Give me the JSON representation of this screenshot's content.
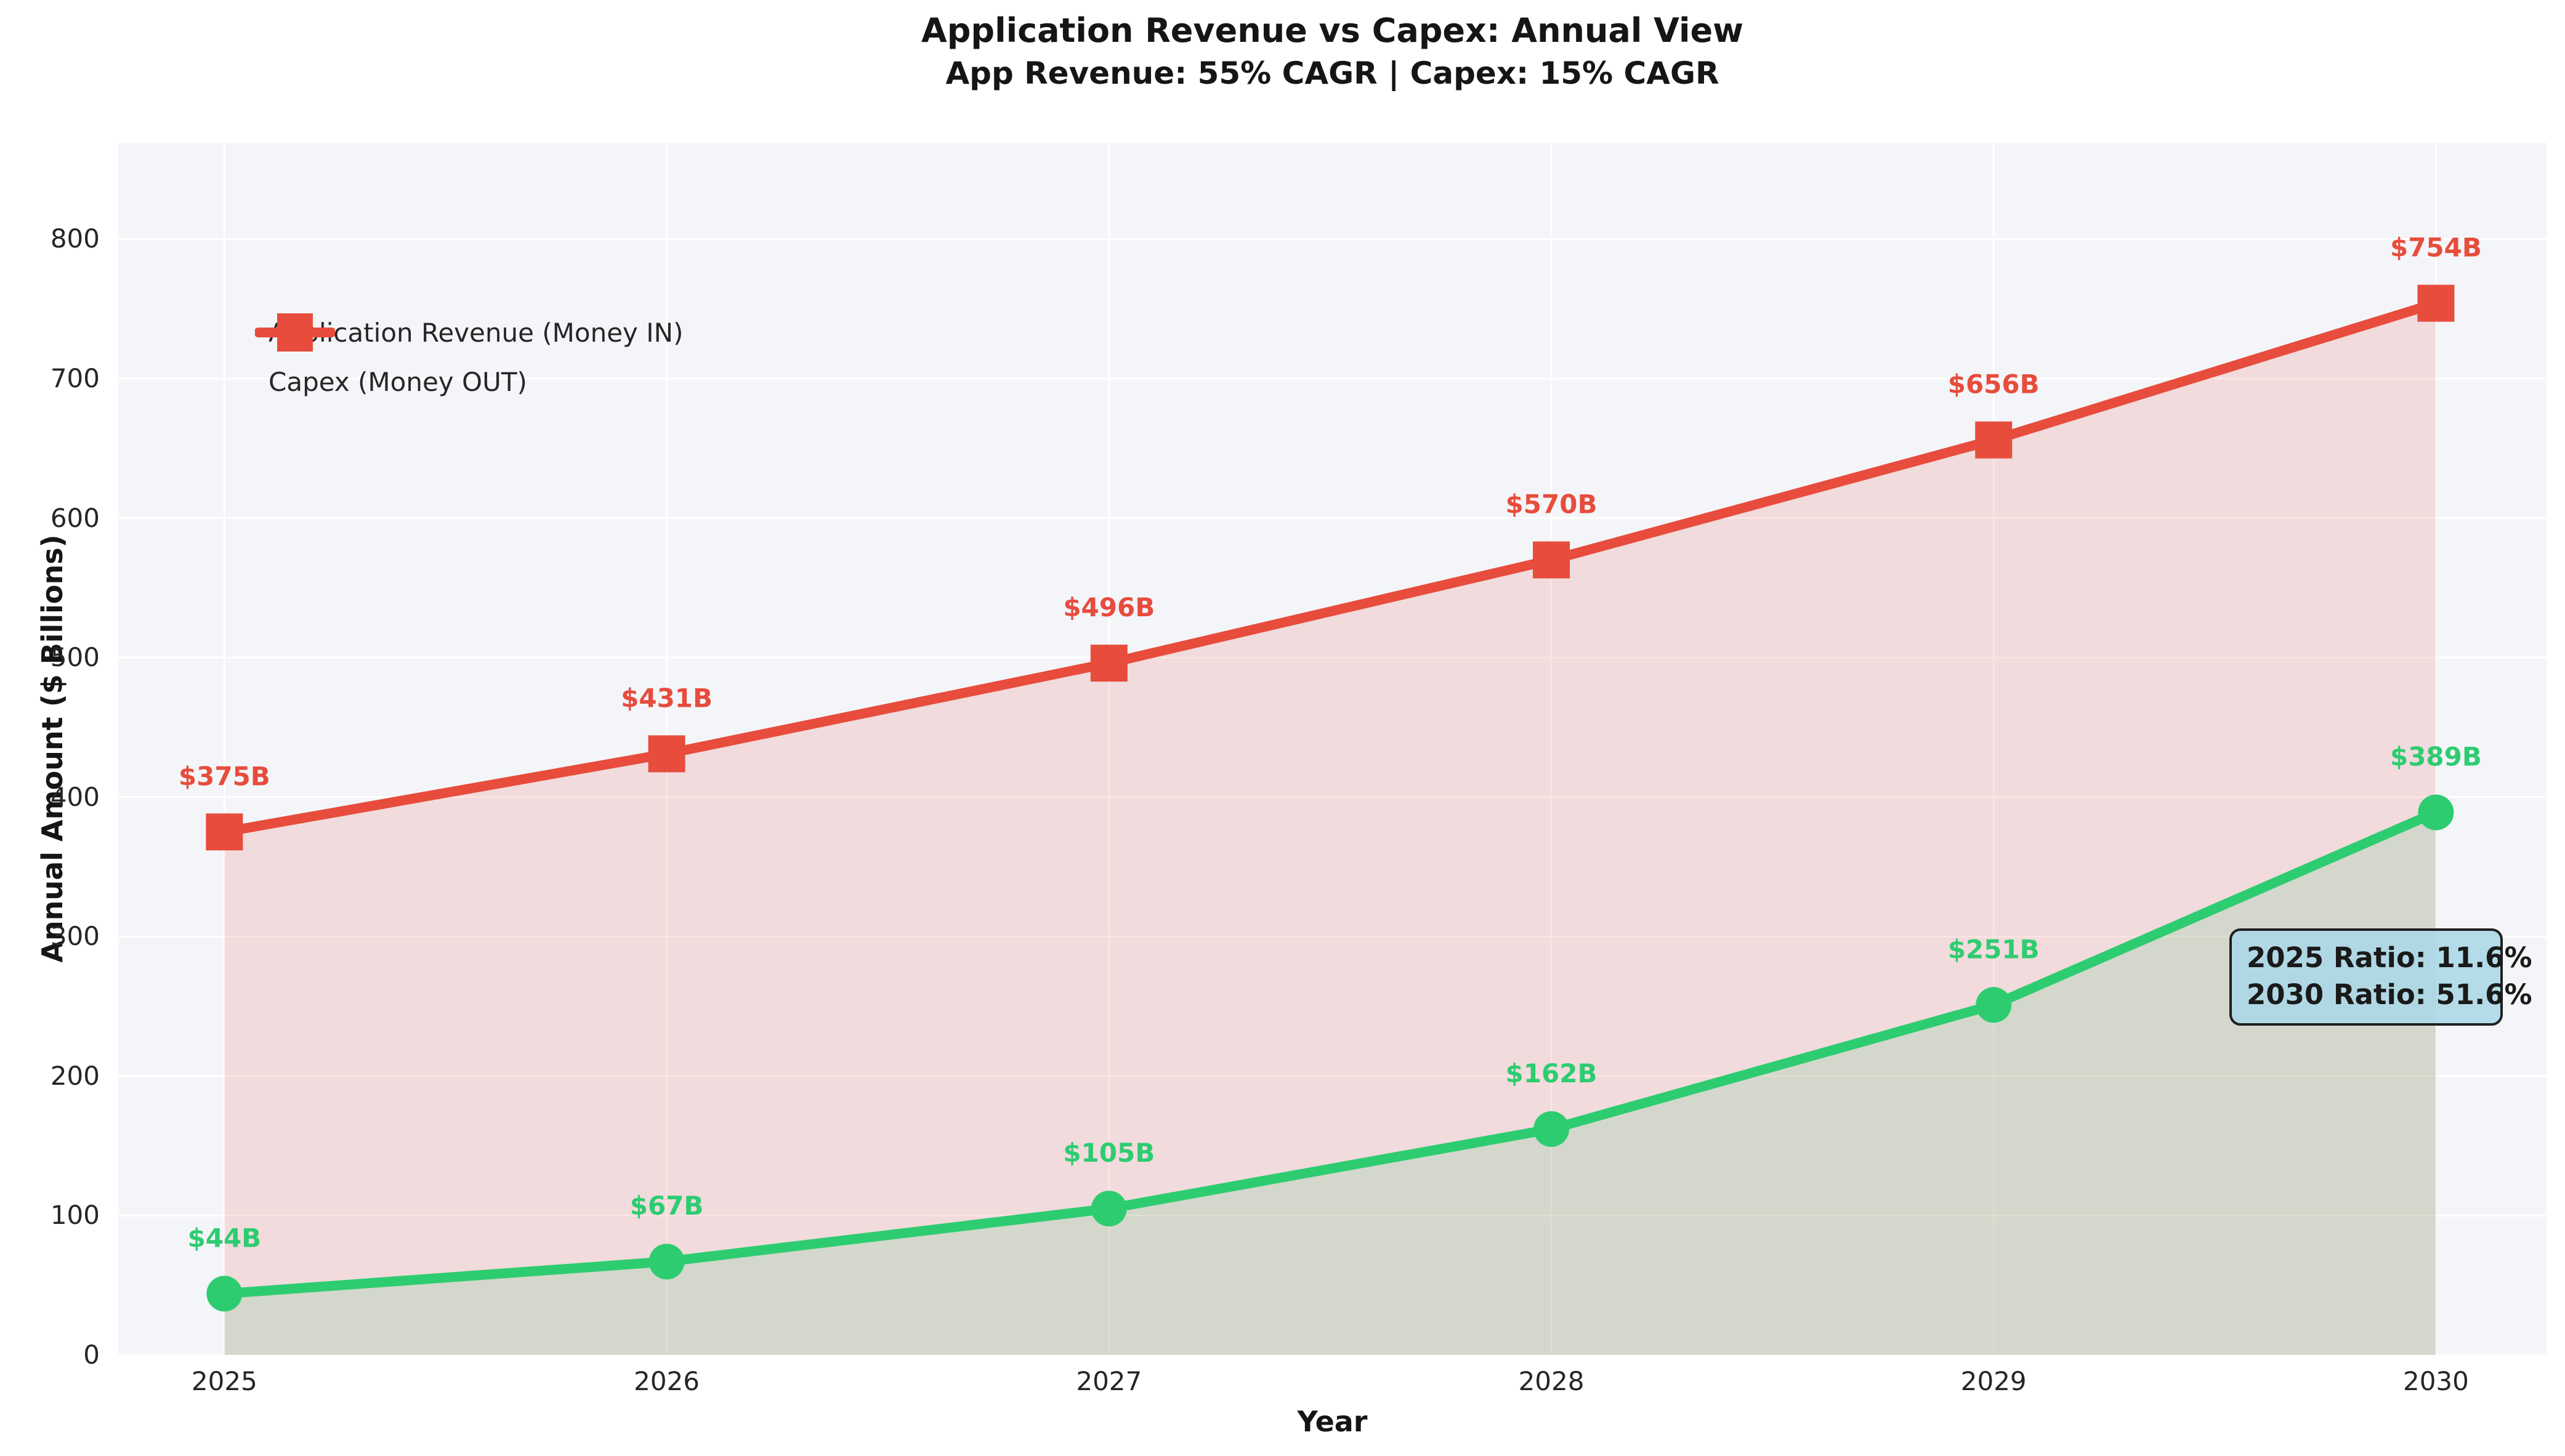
{
  "header": {
    "title": "Application Revenue vs Capex: Annual View",
    "subtitle": "App Revenue: 55% CAGR | Capex: 15% CAGR"
  },
  "axes": {
    "x_label": "Year",
    "y_label": "Annual Amount ($ Billions)"
  },
  "annotation": {
    "line1": "2025 Ratio: 11.6%",
    "line2": "2030 Ratio: 51.6%",
    "bg_color": "#add8e6",
    "border_color": "#1f1f1f"
  },
  "colors": {
    "revenue_green": "#2ecc71",
    "capex_red": "#e74c3c",
    "plot_background": "#f4f5f8",
    "grid": "#ffffff",
    "text": "#262626"
  },
  "chart_data": {
    "type": "line",
    "x": [
      2025,
      2026,
      2027,
      2028,
      2029,
      2030
    ],
    "series": [
      {
        "name": "Application Revenue (Money IN)",
        "color": "#2ecc71",
        "marker": "circle",
        "values": [
          44,
          67,
          105,
          162,
          251,
          389
        ],
        "point_labels": [
          "$44B",
          "$67B",
          "$105B",
          "$162B",
          "$251B",
          "$389B"
        ],
        "fill_to_zero": true
      },
      {
        "name": "Capex (Money OUT)",
        "color": "#e74c3c",
        "marker": "square",
        "values": [
          375,
          431,
          496,
          570,
          656,
          754
        ],
        "point_labels": [
          "$375B",
          "$431B",
          "$496B",
          "$570B",
          "$656B",
          "$754B"
        ],
        "fill_to_zero": true
      }
    ],
    "title": "Application Revenue vs Capex: Annual View",
    "subtitle": "App Revenue: 55% CAGR | Capex: 15% CAGR",
    "xlabel": "Year",
    "ylabel": "Annual Amount ($ Billions)",
    "xticks": [
      2025,
      2026,
      2027,
      2028,
      2029,
      2030
    ],
    "yticks": [
      0,
      100,
      200,
      300,
      400,
      500,
      600,
      700,
      800
    ],
    "xlim": [
      2024.76,
      2030.25
    ],
    "ylim": [
      0,
      869
    ],
    "grid": true,
    "legend_position": "upper left",
    "fill_alpha": 0.15,
    "annotations": [
      "2025 Ratio: 11.6%",
      "2030 Ratio: 51.6%"
    ]
  }
}
